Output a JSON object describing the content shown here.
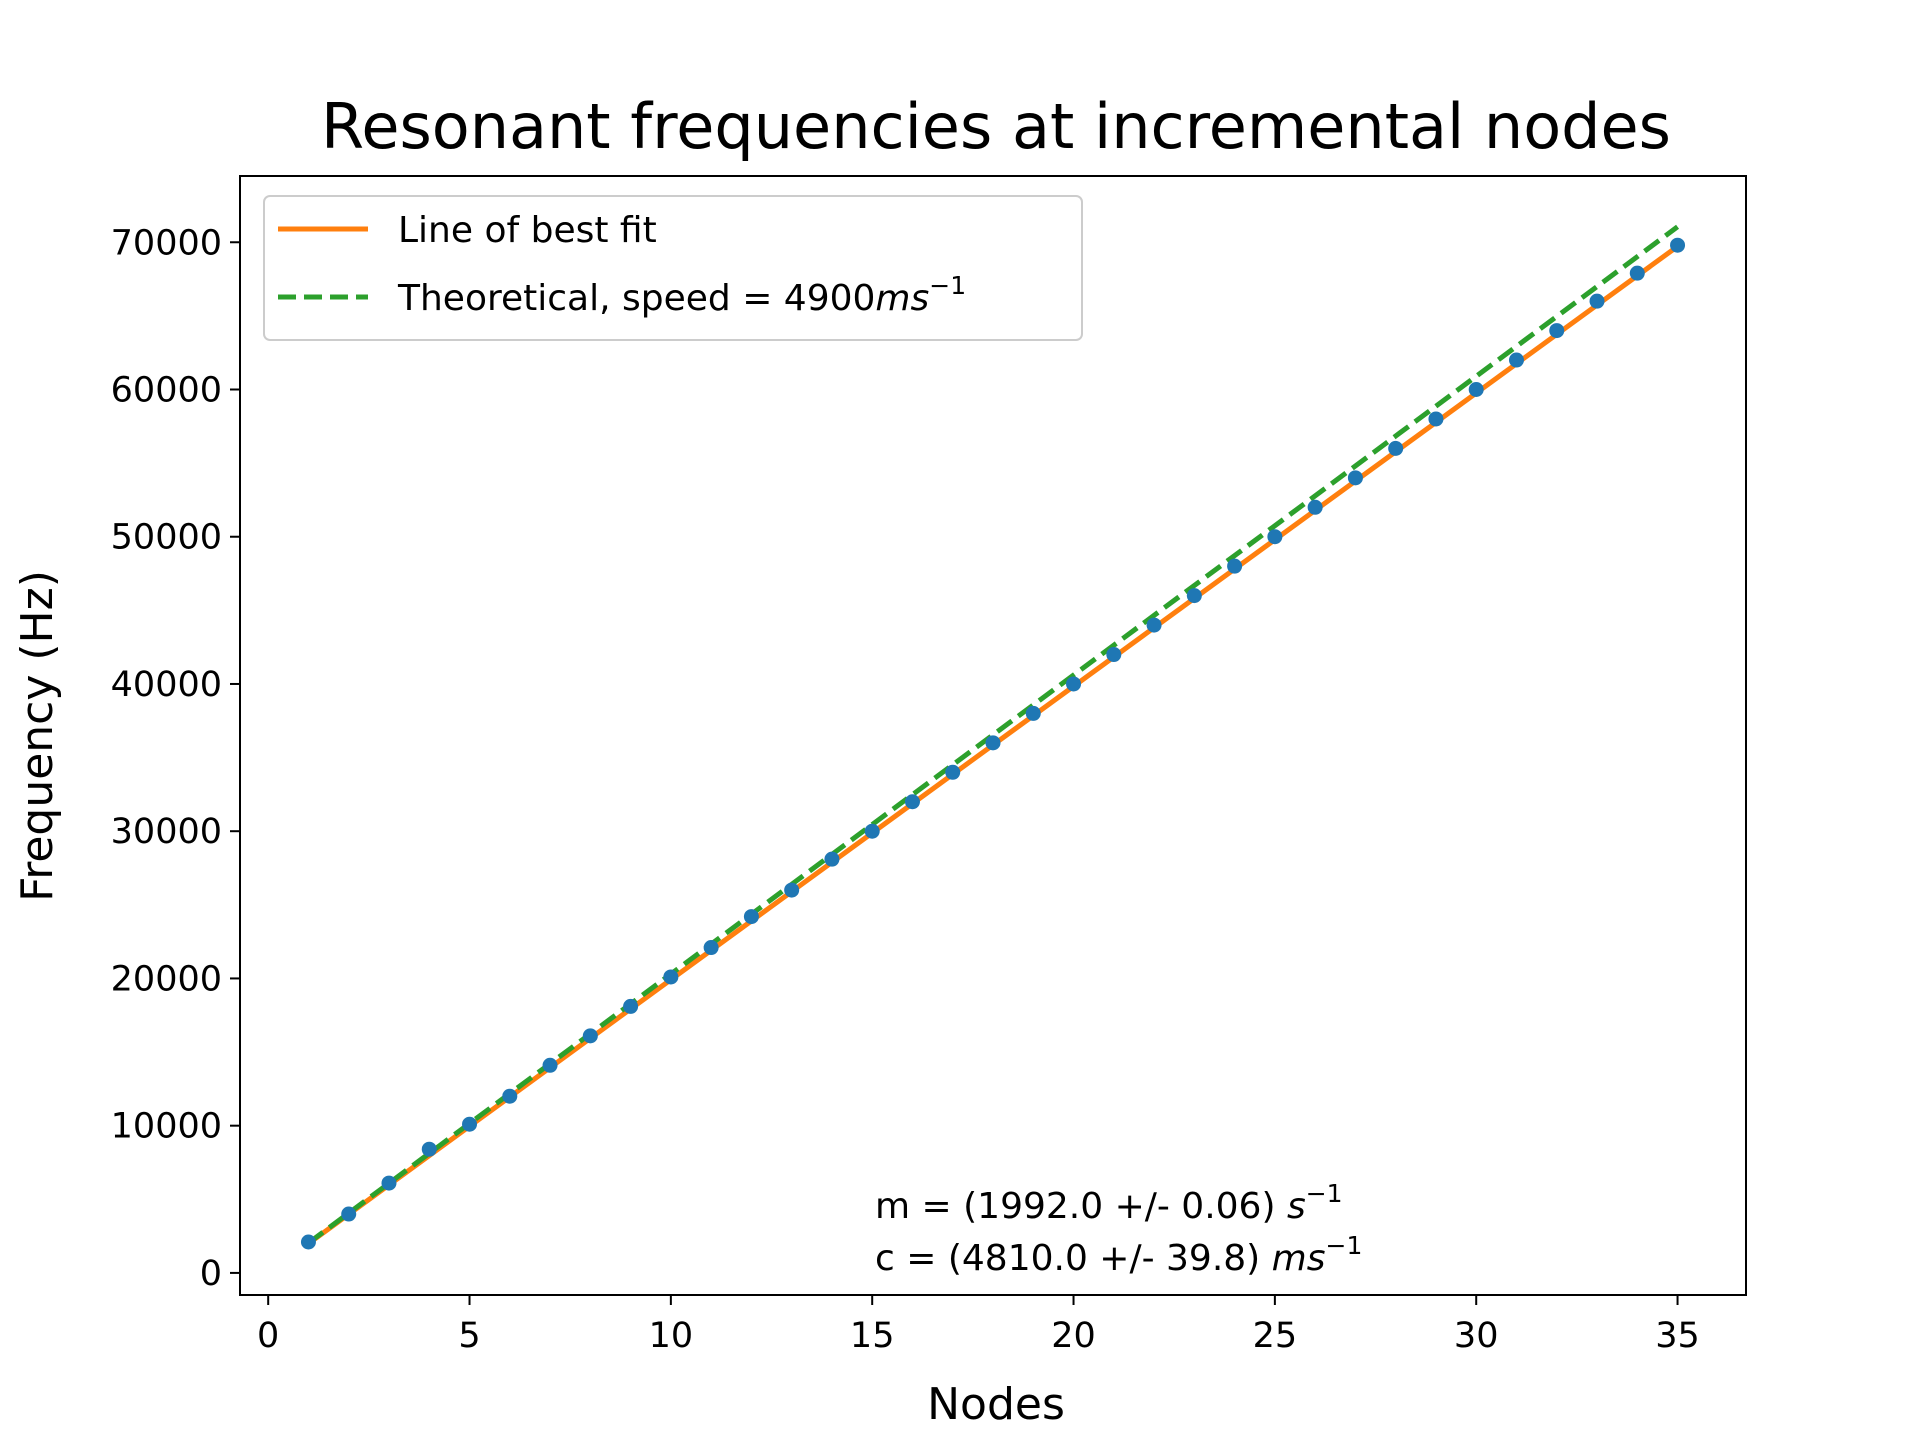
{
  "chart_data": {
    "type": "scatter",
    "title": "Resonant frequencies at incremental nodes",
    "xlabel": "Nodes",
    "ylabel": "Frequency (Hz)",
    "xlim": [
      -0.7,
      36.7
    ],
    "ylim": [
      -1500,
      74500
    ],
    "xticks": [
      0,
      5,
      10,
      15,
      20,
      25,
      30,
      35
    ],
    "yticks": [
      0,
      10000,
      20000,
      30000,
      40000,
      50000,
      60000,
      70000
    ],
    "grid": false,
    "legend_position": "top-left",
    "series": [
      {
        "kind": "points",
        "color": "#1f77b4",
        "x": [
          1,
          2,
          3,
          4,
          5,
          6,
          7,
          8,
          9,
          10,
          11,
          12,
          13,
          14,
          15,
          16,
          17,
          18,
          19,
          20,
          21,
          22,
          23,
          24,
          25,
          26,
          27,
          28,
          29,
          30,
          31,
          32,
          33,
          34,
          35
        ],
        "y": [
          2100,
          4000,
          6100,
          8400,
          10100,
          12000,
          14100,
          16100,
          18100,
          20100,
          22100,
          24200,
          26000,
          28100,
          30000,
          32000,
          34000,
          36000,
          38000,
          40000,
          42000,
          44000,
          46000,
          48000,
          50000,
          52000,
          54000,
          56000,
          58000,
          60000,
          62000,
          64000,
          66000,
          67900,
          69800
        ]
      },
      {
        "kind": "line",
        "name": "Line of best fit",
        "color": "#ff7f0e",
        "dash": "solid",
        "slope": 1992.0,
        "intercept": 0,
        "x_range": [
          1,
          35
        ]
      },
      {
        "kind": "line",
        "name_prefix": "Theoretical, speed = 4900",
        "name_unit": "ms",
        "name_exp": "−1",
        "color": "#2ca02c",
        "dash": "dashed",
        "slope": 2030.0,
        "intercept": 0,
        "x_range": [
          1,
          35
        ]
      }
    ],
    "annotations": [
      {
        "prefix": "m = (1992.0 +/- 0.06) ",
        "unit": "s",
        "exp": "−1"
      },
      {
        "prefix": "c = (4810.0 +/- 39.8) ",
        "unit": "ms",
        "exp": "−1"
      }
    ]
  }
}
